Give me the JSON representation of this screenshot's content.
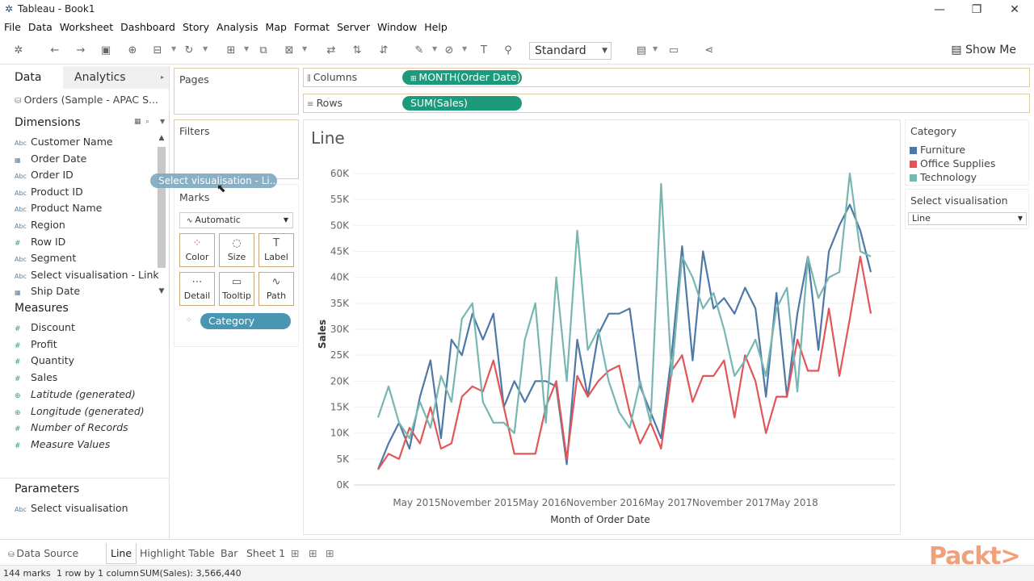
{
  "window": {
    "title": "Tableau - Book1",
    "minimize": "—",
    "restore": "❐",
    "close": "✕"
  },
  "menu": [
    "File",
    "Data",
    "Worksheet",
    "Dashboard",
    "Story",
    "Analysis",
    "Map",
    "Format",
    "Server",
    "Window",
    "Help"
  ],
  "toolbar": {
    "fit_mode": "Standard",
    "show_me": "Show Me"
  },
  "data_pane": {
    "tab_data": "Data",
    "tab_analytics": "Analytics",
    "datasource": "Orders (Sample - APAC S...",
    "dimensions_header": "Dimensions",
    "dimensions": [
      {
        "label": "Customer Name",
        "icon": "Abc"
      },
      {
        "label": "Order Date",
        "icon": "▦"
      },
      {
        "label": "Order ID",
        "icon": "Abc"
      },
      {
        "label": "Product ID",
        "icon": "Abc"
      },
      {
        "label": "Product Name",
        "icon": "Abc"
      },
      {
        "label": "Region",
        "icon": "Abc"
      },
      {
        "label": "Row ID",
        "icon": "#"
      },
      {
        "label": "Segment",
        "icon": "Abc"
      },
      {
        "label": "Select visualisation - Link",
        "icon": "Abc"
      },
      {
        "label": "Ship Date",
        "icon": "▦"
      }
    ],
    "measures_header": "Measures",
    "measures": [
      {
        "label": "Discount",
        "icon": "#",
        "italic": false
      },
      {
        "label": "Profit",
        "icon": "#",
        "italic": false
      },
      {
        "label": "Quantity",
        "icon": "#",
        "italic": false
      },
      {
        "label": "Sales",
        "icon": "#",
        "italic": false
      },
      {
        "label": "Latitude (generated)",
        "icon": "⊕",
        "italic": true
      },
      {
        "label": "Longitude (generated)",
        "icon": "⊕",
        "italic": true
      },
      {
        "label": "Number of Records",
        "icon": "#",
        "italic": true
      },
      {
        "label": "Measure Values",
        "icon": "#",
        "italic": true
      }
    ],
    "parameters_header": "Parameters",
    "parameters": [
      {
        "label": "Select visualisation",
        "icon": "Abc"
      }
    ]
  },
  "cards": {
    "pages": "Pages",
    "filters": "Filters",
    "marks": "Marks",
    "mark_type": "Automatic",
    "mark_buttons": [
      {
        "label": "Color",
        "icon": "⁘"
      },
      {
        "label": "Size",
        "icon": "◌"
      },
      {
        "label": "Label",
        "icon": "T"
      },
      {
        "label": "Detail",
        "icon": "⋯"
      },
      {
        "label": "Tooltip",
        "icon": "▭"
      },
      {
        "label": "Path",
        "icon": "∿"
      }
    ],
    "color_field": "Category",
    "drag_pill": "Select visualisation - Li..."
  },
  "shelves": {
    "columns_label": "Columns",
    "columns_pill": "MONTH(Order Date)",
    "rows_label": "Rows",
    "rows_pill": "SUM(Sales)"
  },
  "legend": {
    "title": "Category",
    "items": [
      {
        "label": "Furniture",
        "color": "#4e79a7"
      },
      {
        "label": "Office Supplies",
        "color": "#e15759"
      },
      {
        "label": "Technology",
        "color": "#76b7b2"
      }
    ]
  },
  "parameter_control": {
    "title": "Select visualisation",
    "value": "Line"
  },
  "sheet_tabs": {
    "data_source": "Data Source",
    "sheets": [
      "Line",
      "Highlight Table",
      "Bar",
      "Sheet 1"
    ],
    "active": "Line"
  },
  "status": {
    "marks": "144 marks",
    "rows_cols": "1 row by 1 column",
    "sum": "SUM(Sales): 3,566,440"
  },
  "watermark": "Packt>",
  "chart_data": {
    "type": "line",
    "title": "Line",
    "xlabel": "Month of Order Date",
    "ylabel": "Sales",
    "x_tick_labels": [
      "May 2015",
      "November 2015",
      "May 2016",
      "November 2016",
      "May 2017",
      "November 2017",
      "May 2018"
    ],
    "y_tick_labels": [
      "0K",
      "5K",
      "10K",
      "15K",
      "20K",
      "25K",
      "30K",
      "35K",
      "40K",
      "45K",
      "50K",
      "55K",
      "60K"
    ],
    "ylim": [
      0,
      60000
    ],
    "x_start": "2015-01",
    "x_months": 48,
    "grid": true,
    "series": [
      {
        "name": "Furniture",
        "color": "#4e79a7",
        "values": [
          3000,
          8000,
          12000,
          7000,
          17000,
          24000,
          9000,
          28000,
          25000,
          33000,
          28000,
          33000,
          15000,
          20000,
          16000,
          20000,
          20000,
          19000,
          4000,
          28000,
          17000,
          29000,
          33000,
          33000,
          34000,
          19000,
          14000,
          9000,
          25000,
          46000,
          24000,
          45000,
          34000,
          36000,
          33000,
          38000,
          34000,
          17000,
          37000,
          17000,
          33000,
          44000,
          26000,
          45000,
          50000,
          54000,
          49000,
          41000
        ]
      },
      {
        "name": "Office Supplies",
        "color": "#e15759",
        "values": [
          3000,
          6000,
          5000,
          11000,
          8000,
          15000,
          7000,
          8000,
          17000,
          19000,
          18000,
          24000,
          15000,
          6000,
          6000,
          6000,
          15000,
          20000,
          5000,
          21000,
          17000,
          20000,
          22000,
          23000,
          14000,
          8000,
          12000,
          7000,
          22000,
          25000,
          16000,
          21000,
          21000,
          24000,
          13000,
          25000,
          20000,
          10000,
          17000,
          17000,
          28000,
          22000,
          22000,
          34000,
          21000,
          32000,
          44000,
          33000
        ]
      },
      {
        "name": "Technology",
        "color": "#76b7b2",
        "values": [
          13000,
          19000,
          12000,
          9000,
          16000,
          11000,
          21000,
          16000,
          32000,
          35000,
          16000,
          12000,
          12000,
          10000,
          28000,
          35000,
          12000,
          40000,
          20000,
          49000,
          26000,
          30000,
          20000,
          14000,
          11000,
          20000,
          12000,
          58000,
          21000,
          44000,
          40000,
          34000,
          37000,
          30000,
          21000,
          24000,
          28000,
          21000,
          34000,
          38000,
          18000,
          44000,
          36000,
          40000,
          41000,
          60000,
          45000,
          44000
        ]
      }
    ]
  }
}
